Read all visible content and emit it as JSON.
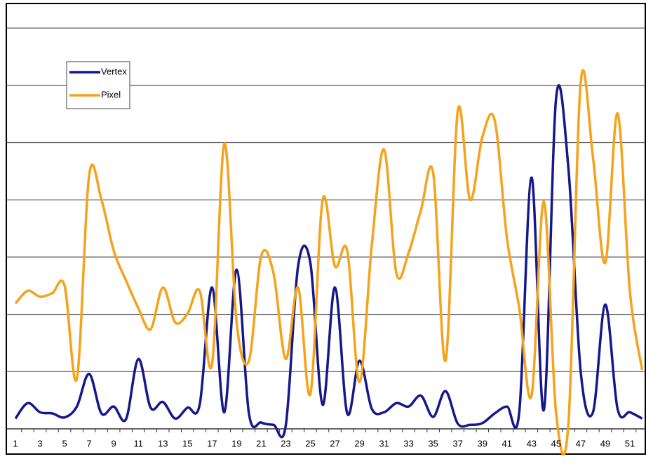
{
  "chart_data": {
    "type": "line",
    "categories": [
      "1",
      null,
      "3",
      null,
      "5",
      null,
      "7",
      null,
      "9",
      null,
      "11",
      null,
      "13",
      null,
      "15",
      null,
      "17",
      null,
      "19",
      null,
      "21",
      null,
      "23",
      null,
      "25",
      null,
      "27",
      null,
      "29",
      null,
      "31",
      null,
      "33",
      null,
      "35",
      null,
      "37",
      null,
      "39",
      null,
      "41",
      null,
      "43",
      null,
      "45",
      null,
      "47",
      null,
      "49",
      null,
      "51",
      null
    ],
    "series": [
      {
        "name": "Vertex",
        "color": "#15188a",
        "values": [
          0.18,
          0.45,
          0.29,
          0.27,
          0.2,
          0.39,
          0.96,
          0.27,
          0.39,
          0.17,
          1.22,
          0.37,
          0.47,
          0.18,
          0.37,
          0.43,
          2.47,
          0.29,
          2.78,
          0.27,
          0.11,
          0.07,
          0.06,
          2.84,
          2.9,
          0.42,
          2.47,
          0.27,
          1.19,
          0.35,
          0.29,
          0.45,
          0.39,
          0.58,
          0.21,
          0.66,
          0.09,
          0.07,
          0.1,
          0.27,
          0.39,
          0.29,
          4.39,
          0.33,
          5.78,
          4.55,
          1.0,
          0.29,
          2.17,
          0.35,
          0.29,
          0.18
        ]
      },
      {
        "name": "Pixel",
        "color": "#f5a21c",
        "values": [
          2.19,
          2.41,
          2.31,
          2.37,
          2.5,
          0.88,
          4.43,
          4.0,
          3.11,
          2.59,
          2.11,
          1.74,
          2.47,
          1.86,
          2.01,
          2.41,
          1.13,
          4.98,
          1.86,
          1.19,
          3.02,
          2.72,
          1.22,
          2.47,
          0.61,
          4.0,
          2.84,
          3.11,
          0.82,
          3.21,
          4.88,
          2.72,
          3.08,
          3.82,
          4.46,
          1.19,
          5.56,
          4.0,
          5.1,
          5.39,
          3.33,
          2.11,
          0.58,
          3.97,
          0.27,
          0.09,
          6.05,
          4.74,
          2.9,
          5.51,
          2.41,
          1.03
        ]
      }
    ],
    "ylim": [
      0,
      7.4
    ],
    "yticks": [
      0,
      1,
      2,
      3,
      4,
      5,
      6,
      7
    ],
    "show_ytick_labels": false,
    "grid": true,
    "legend": "upper left"
  }
}
